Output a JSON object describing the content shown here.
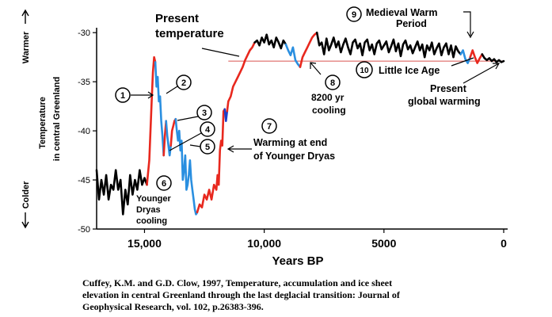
{
  "chart_data": {
    "type": "line",
    "ylabel_top": "Warmer",
    "ylabel_mid_1": "Temperature",
    "ylabel_mid_2": "in central Greenland",
    "ylabel_bottom": "Colder",
    "xlabel": "Years BP",
    "x_ticks": [
      15000,
      10000,
      5000,
      0
    ],
    "x_tick_labels": [
      "15,000",
      "10,000",
      "5000",
      "0"
    ],
    "y_ticks": [
      -30,
      -35,
      -40,
      -45,
      -50
    ],
    "y_tick_labels": [
      "-30",
      "-35",
      "-40",
      "-45",
      "-50"
    ],
    "xlim": [
      17000,
      0
    ],
    "ylim": [
      -50,
      -29.5
    ],
    "present_temperature": -32.9,
    "series": [
      {
        "color": "#000000",
        "x": [
          17000,
          16900,
          16800,
          16700,
          16600,
          16500,
          16400,
          16300,
          16200,
          16100,
          16000,
          15900,
          15800,
          15700,
          15600,
          15500,
          15400,
          15300,
          15200,
          15100,
          15000,
          14900
        ],
        "y": [
          -44,
          -47,
          -45,
          -46.5,
          -44.5,
          -47,
          -45.5,
          -46,
          -44,
          -46,
          -45,
          -48.5,
          -46,
          -47.5,
          -44.5,
          -46.5,
          -45,
          -46,
          -44,
          -45.5,
          -44.8,
          -45.5
        ]
      },
      {
        "color": "#e8281e",
        "x": [
          14900,
          14800,
          14750,
          14700,
          14650,
          14600,
          14550
        ],
        "y": [
          -45.5,
          -43,
          -40,
          -37,
          -34,
          -32.5,
          -33
        ]
      },
      {
        "color": "#2a8fe0",
        "x": [
          14550,
          14500,
          14450,
          14400,
          14350,
          14300,
          14250,
          14200
        ],
        "y": [
          -33,
          -35.5,
          -34.5,
          -37,
          -36.5,
          -39,
          -40.5,
          -42.5
        ]
      },
      {
        "color": "#e8281e",
        "x": [
          14200,
          14150,
          14100
        ],
        "y": [
          -42.5,
          -40.5,
          -39
        ]
      },
      {
        "color": "#2a8fe0",
        "x": [
          14100,
          14050,
          14000,
          13950,
          13900
        ],
        "y": [
          -39,
          -40.5,
          -41.5,
          -42.5,
          -41.5
        ]
      },
      {
        "color": "#e8281e",
        "x": [
          13900,
          13850,
          13800,
          13750,
          13700
        ],
        "y": [
          -41.5,
          -40,
          -39.5,
          -39,
          -38.8
        ]
      },
      {
        "color": "#2a8fe0",
        "x": [
          13700,
          13650,
          13600,
          13550,
          13500,
          13450,
          13400,
          13350,
          13300,
          13250,
          13200,
          13150,
          13100,
          13050,
          13000,
          12950,
          12900,
          12850,
          12800
        ],
        "y": [
          -38.8,
          -40,
          -41,
          -40,
          -42,
          -41,
          -45,
          -44,
          -42.5,
          -46,
          -45.5,
          -44.5,
          -43,
          -45,
          -46,
          -47,
          -48,
          -48.5,
          -48.3
        ]
      },
      {
        "color": "#e8281e",
        "x": [
          12800,
          12700,
          12600,
          12500,
          12400,
          12300,
          12200,
          12100,
          12000,
          11950,
          11900,
          11850,
          11800,
          11750,
          11700,
          11650
        ],
        "y": [
          -48.3,
          -47.5,
          -47.8,
          -46.5,
          -47,
          -46,
          -47,
          -45.5,
          -46,
          -44.5,
          -45.5,
          -42,
          -41,
          -41.5,
          -38,
          -37.8
        ]
      },
      {
        "color": "#1c3fc8",
        "x": [
          11650,
          11600,
          11550
        ],
        "y": [
          -37.8,
          -39,
          -38
        ]
      },
      {
        "color": "#e8281e",
        "x": [
          11550,
          11500,
          11400,
          11300,
          11200,
          11100,
          11000,
          10900,
          10800,
          10700,
          10600,
          10500,
          10400
        ],
        "y": [
          -38,
          -37,
          -36.5,
          -35.5,
          -35,
          -34.5,
          -34,
          -33.5,
          -32.8,
          -32.3,
          -31.8,
          -31.5,
          -31
        ]
      },
      {
        "color": "#000000",
        "x": [
          10400,
          10300,
          10200,
          10100,
          10000,
          9900,
          9800,
          9700,
          9600,
          9500,
          9400,
          9300,
          9200,
          9100
        ],
        "y": [
          -31,
          -30.8,
          -31.3,
          -30.5,
          -31,
          -30.2,
          -31.2,
          -30.8,
          -31.5,
          -30.5,
          -31,
          -31.6,
          -30.8,
          -31.2
        ]
      },
      {
        "color": "#2a8fe0",
        "x": [
          9100,
          9000,
          8900,
          8800,
          8700,
          8600,
          8500
        ],
        "y": [
          -31.2,
          -31.8,
          -32.3,
          -31.5,
          -32.8,
          -33.2,
          -33.5
        ]
      },
      {
        "color": "#e8281e",
        "x": [
          8500,
          8400,
          8300,
          8200,
          8100,
          8000,
          7900,
          7800
        ],
        "y": [
          -33.5,
          -32.5,
          -32,
          -31.5,
          -31,
          -30.5,
          -30.2,
          -30
        ]
      },
      {
        "color": "#000000",
        "x": [
          7800,
          7700,
          7600,
          7500,
          7400,
          7300,
          7200,
          7100,
          7000,
          6900,
          6800,
          6700,
          6600,
          6500,
          6400,
          6300,
          6200,
          6100,
          6000,
          5900,
          5800,
          5700,
          5600,
          5500,
          5400,
          5300,
          5200,
          5100,
          5000,
          4900,
          4800,
          4700,
          4600,
          4500,
          4400,
          4300,
          4200,
          4100,
          4000,
          3900,
          3800,
          3700,
          3600,
          3500,
          3400,
          3300,
          3200,
          3100,
          3000,
          2900,
          2800,
          2700,
          2600,
          2500,
          2400,
          2300,
          2200,
          2100,
          2000,
          1900,
          1800
        ],
        "y": [
          -30,
          -31.3,
          -31,
          -32.2,
          -30.6,
          -31.8,
          -31.2,
          -30.5,
          -31.5,
          -30.9,
          -32,
          -31.2,
          -30.6,
          -31.5,
          -32.2,
          -31,
          -30.7,
          -31.6,
          -31.1,
          -32.3,
          -31,
          -30.7,
          -31.8,
          -31.2,
          -32.2,
          -31.1,
          -30.8,
          -31.7,
          -31.3,
          -30.9,
          -32,
          -31.4,
          -30.7,
          -31.9,
          -31.1,
          -32.4,
          -31.2,
          -30.8,
          -31.7,
          -31.3,
          -32.1,
          -31.5,
          -30.9,
          -31.8,
          -31.2,
          -32.5,
          -31.3,
          -31.8,
          -31,
          -32.2,
          -31.6,
          -31.1,
          -32.3,
          -31.5,
          -31.1,
          -32.2,
          -31.3,
          -32.5,
          -31.4,
          -31.9,
          -32.2
        ]
      },
      {
        "color": "#2a8fe0",
        "x": [
          1800,
          1700,
          1600,
          1500,
          1400
        ],
        "y": [
          -32.2,
          -31.8,
          -32.7,
          -33.1,
          -32.5
        ]
      },
      {
        "color": "#e8281e",
        "x": [
          1400,
          1300,
          1200,
          1100,
          1000,
          900
        ],
        "y": [
          -32.5,
          -31.8,
          -32.5,
          -33.1,
          -32.6,
          -32.2
        ]
      },
      {
        "color": "#000000",
        "x": [
          900,
          800,
          700,
          600,
          500,
          400,
          300,
          200,
          100,
          0
        ],
        "y": [
          -32.2,
          -32.6,
          -32.8,
          -32.6,
          -32.9,
          -32.7,
          -33,
          -32.8,
          -33,
          -32.9
        ]
      }
    ]
  },
  "annotations": {
    "present_temperature": [
      "Present",
      "temperature"
    ],
    "medieval_warm": [
      "Medieval Warm",
      "Period"
    ],
    "little_ice_age": "Little Ice Age",
    "present_global_warming": [
      "Present",
      "global warming"
    ],
    "cooling_8200": [
      "8200 yr",
      "cooling"
    ],
    "warming_younger_dryas": [
      "Warming at end",
      "of Younger Dryas"
    ],
    "younger_dryas_cooling": [
      "Younger",
      "Dryas",
      "cooling"
    ],
    "markers": [
      "1",
      "2",
      "3",
      "4",
      "5",
      "6",
      "7",
      "8",
      "9",
      "10"
    ]
  },
  "caption": [
    "Cuffey, K.M. and G.D. Clow, 1997, Temperature, accumulation and ice sheet",
    "elevation in central Greenland through the last deglacial transition: Journal of",
    "Geophysical Research, vol. 102, p.26383-396."
  ]
}
